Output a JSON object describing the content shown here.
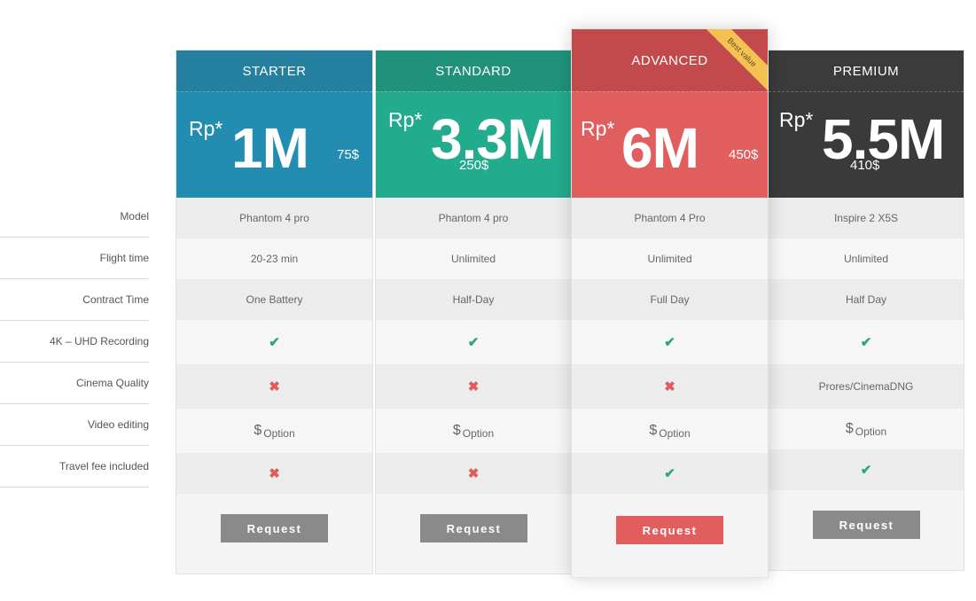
{
  "features": [
    "Model",
    "Flight time",
    "Contract Time",
    "4K – UHD Recording",
    "Cinema Quality",
    "Video editing",
    "Travel fee included"
  ],
  "plans": [
    {
      "name": "STARTER",
      "currency": "Rp*",
      "amount": "1M",
      "usd": "75$",
      "model": "Phantom 4 pro",
      "flight_time": "20-23 min",
      "contract_time": "One Battery",
      "recording_4k": "check",
      "cinema_quality": "cross",
      "video_editing_symbol": "$",
      "video_editing": "Option",
      "travel_fee": "cross",
      "button": "Request",
      "button_color": "#8a8a8a"
    },
    {
      "name": "STANDARD",
      "currency": "Rp*",
      "amount": "3.3M",
      "usd": "250$",
      "model": "Phantom 4 pro",
      "flight_time": "Unlimited",
      "contract_time": "Half-Day",
      "recording_4k": "check",
      "cinema_quality": "cross",
      "video_editing_symbol": "$",
      "video_editing": "Option",
      "travel_fee": "cross",
      "button": "Request",
      "button_color": "#8a8a8a"
    },
    {
      "name": "ADVANCED",
      "ribbon": "Best value",
      "currency": "Rp*",
      "amount": "6M",
      "usd": "450$",
      "model": "Phantom 4 Pro",
      "flight_time": "Unlimited",
      "contract_time": "Full Day",
      "recording_4k": "check",
      "cinema_quality": "cross",
      "video_editing_symbol": "$",
      "video_editing": "Option",
      "travel_fee": "check",
      "button": "Request",
      "button_color": "#e05e5e"
    },
    {
      "name": "PREMIUM",
      "currency": "Rp*",
      "amount": "5.5M",
      "usd": "410$",
      "model": "Inspire 2 X5S",
      "flight_time": "Unlimited",
      "contract_time": "Half Day",
      "recording_4k": "check",
      "cinema_quality": "Prores/CinemaDNG",
      "video_editing_symbol": "$",
      "video_editing": "Option",
      "travel_fee": "check",
      "button": "Request",
      "button_color": "#8a8a8a"
    }
  ],
  "icons": {
    "check": "check-icon",
    "cross": "cross-icon"
  }
}
